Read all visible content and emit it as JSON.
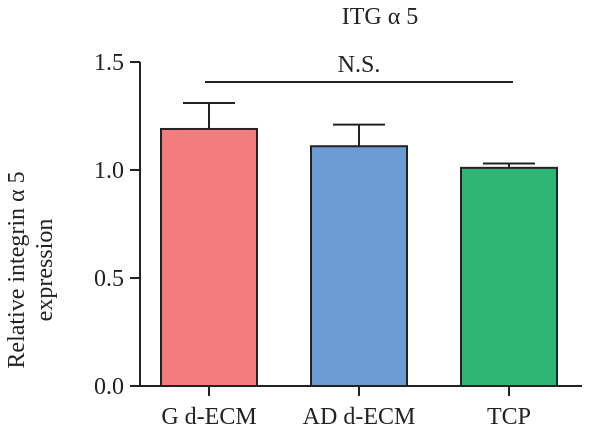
{
  "chart_data": {
    "type": "bar",
    "title": "ITG α 5",
    "ylabel": "Relative integrin α 5 expression",
    "ylabel_lines": [
      "Relative integrin α 5",
      "expression"
    ],
    "xlabel": "",
    "categories": [
      "G d-ECM",
      "AD d-ECM",
      "TCP"
    ],
    "values": [
      1.19,
      1.11,
      1.01
    ],
    "errors": [
      0.12,
      0.1,
      0.02
    ],
    "colors": [
      "#f47c7c",
      "#6b9bd2",
      "#2fb575"
    ],
    "ylim": [
      0,
      1.5
    ],
    "yticks": [
      0.0,
      0.5,
      1.0,
      1.5
    ],
    "ytick_labels": [
      "0.0",
      "0.5",
      "1.0",
      "1.5"
    ],
    "grid": false,
    "annotation": {
      "text": "N.S.",
      "from_category": 0,
      "to_category": 2
    }
  }
}
